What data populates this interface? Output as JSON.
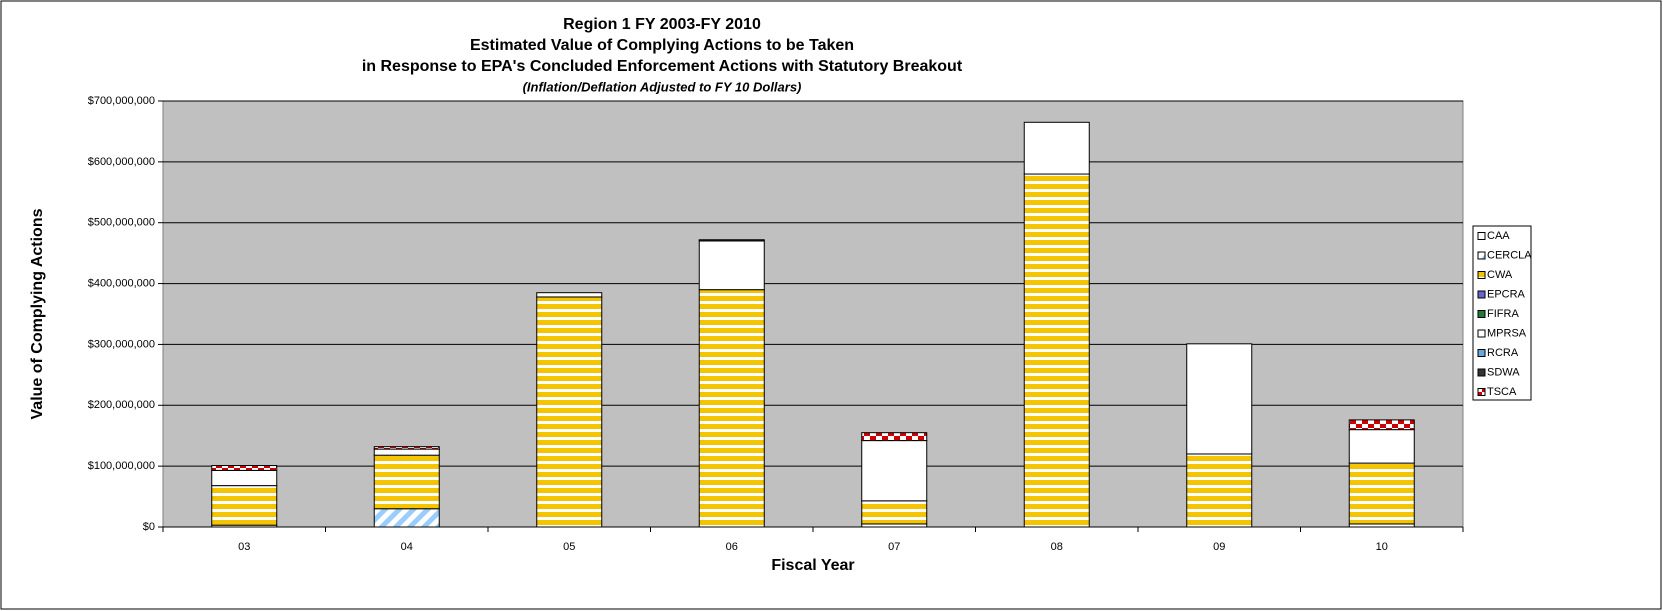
{
  "chart_data": {
    "type": "stacked_bar",
    "title": "Region 1 FY 2003-FY 2010",
    "subtitle": [
      "Estimated Value of Complying Actions to be Taken",
      "in Response to EPA's Concluded Enforcement Actions with Statutory Breakout",
      "(Inflation/Deflation Adjusted to FY 10 Dollars)"
    ],
    "x_label": "Fiscal Year",
    "y_label": "Value of Complying Actions",
    "categories": [
      "03",
      "04",
      "05",
      "06",
      "07",
      "08",
      "09",
      "10"
    ],
    "series": [
      {
        "name": "CAA",
        "color": "#ffffff",
        "pattern": "solid",
        "values": [
          3000000,
          0,
          0,
          0,
          5000000,
          0,
          0,
          5000000
        ]
      },
      {
        "name": "CERCLA",
        "color": "#99ccff",
        "pattern": "diagonal",
        "values": [
          0,
          30000000,
          0,
          0,
          0,
          0,
          0,
          0
        ]
      },
      {
        "name": "CWA",
        "color": "#f5c400",
        "pattern": "horizontal",
        "values": [
          65000000,
          88000000,
          378000000,
          390000000,
          38000000,
          580000000,
          120000000,
          100000000
        ]
      },
      {
        "name": "EPCRA",
        "color": "#6666cc",
        "pattern": "solid",
        "values": [
          0,
          0,
          0,
          0,
          0,
          0,
          0,
          0
        ]
      },
      {
        "name": "FIFRA",
        "color": "#1f7a3a",
        "pattern": "solid",
        "values": [
          0,
          0,
          0,
          0,
          0,
          0,
          0,
          0
        ]
      },
      {
        "name": "MPRSA",
        "color": "#ffffff",
        "pattern": "solid",
        "values": [
          25000000,
          10000000,
          7000000,
          80000000,
          99000000,
          85000000,
          181000000,
          55000000
        ]
      },
      {
        "name": "RCRA",
        "color": "#66aadd",
        "pattern": "solid",
        "values": [
          0,
          0,
          0,
          0,
          0,
          0,
          0,
          0
        ]
      },
      {
        "name": "SDWA",
        "color": "#333333",
        "pattern": "solid",
        "values": [
          0,
          0,
          0,
          2000000,
          0,
          0,
          0,
          0
        ]
      },
      {
        "name": "TSCA",
        "color": "#cc0000",
        "pattern": "checker",
        "values": [
          8000000,
          4000000,
          0,
          0,
          13000000,
          0,
          0,
          16000000
        ]
      }
    ],
    "ylim": [
      0,
      700000000
    ],
    "yticks": [
      {
        "value": 0,
        "label": "$0"
      },
      {
        "value": 100000000,
        "label": "$100,000,000"
      },
      {
        "value": 200000000,
        "label": "$200,000,000"
      },
      {
        "value": 300000000,
        "label": "$300,000,000"
      },
      {
        "value": 400000000,
        "label": "$400,000,000"
      },
      {
        "value": 500000000,
        "label": "$500,000,000"
      },
      {
        "value": 600000000,
        "label": "$600,000,000"
      },
      {
        "value": 700000000,
        "label": "$700,000,000"
      }
    ],
    "grid": true,
    "legend": "right"
  }
}
